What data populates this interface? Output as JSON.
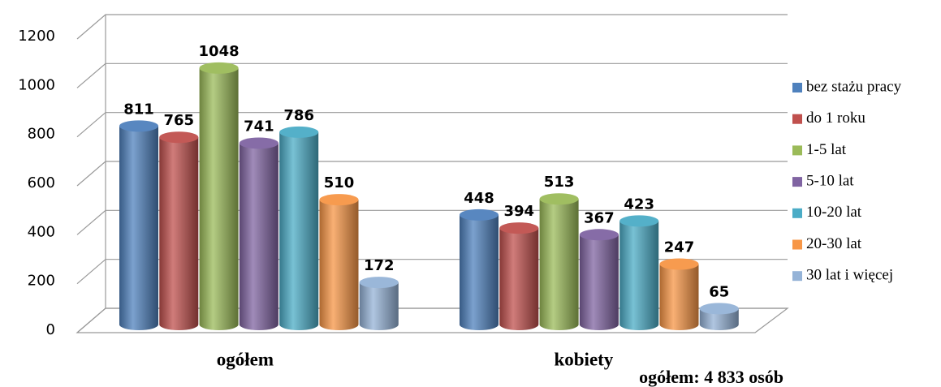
{
  "chart_data": {
    "type": "bar3d",
    "categories": [
      "ogółem",
      "kobiety"
    ],
    "series": [
      {
        "name": "bez stażu pracy",
        "color": "#4f81bd",
        "values": [
          811,
          448
        ]
      },
      {
        "name": "do 1 roku",
        "color": "#c0504d",
        "values": [
          765,
          394
        ]
      },
      {
        "name": "1-5 lat",
        "color": "#9bbb59",
        "values": [
          1048,
          513
        ]
      },
      {
        "name": "5-10 lat",
        "color": "#8064a2",
        "values": [
          741,
          367
        ]
      },
      {
        "name": "10-20 lat",
        "color": "#4bacc6",
        "values": [
          786,
          423
        ]
      },
      {
        "name": "20-30 lat",
        "color": "#f79646",
        "values": [
          510,
          247
        ]
      },
      {
        "name": "30 lat i więcej",
        "color": "#95b3d7",
        "values": [
          172,
          65
        ]
      }
    ],
    "ylim": [
      0,
      1200
    ],
    "yticks": [
      0,
      200,
      400,
      600,
      800,
      1000,
      1200
    ],
    "grid": true,
    "legend": "right",
    "annotation": "ogółem: 4 833 osób"
  }
}
